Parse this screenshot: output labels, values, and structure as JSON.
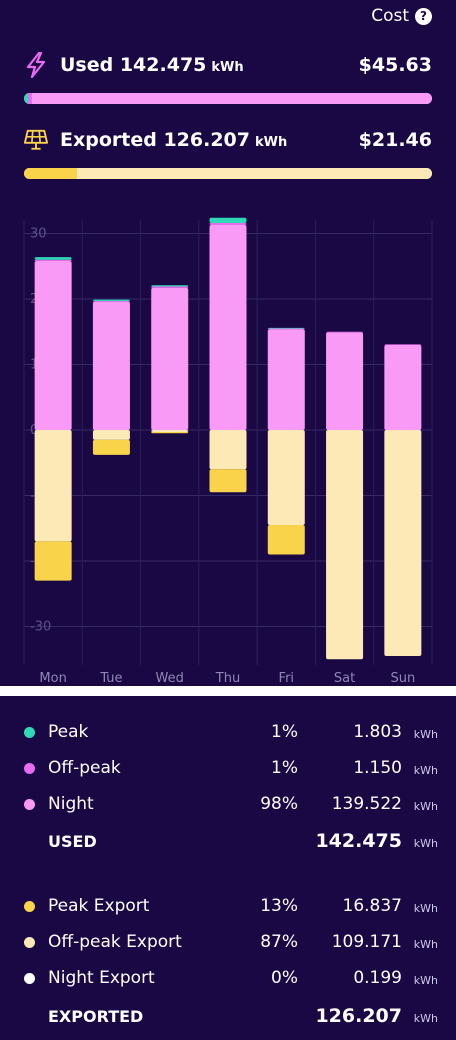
{
  "header": {
    "cost_label": "Cost",
    "help_glyph": "?"
  },
  "used": {
    "label": "Used 142.475",
    "unit": "kWh",
    "cost": "$45.63",
    "icon": "lightning-icon",
    "bar_fill": [
      {
        "name": "Peak",
        "fraction": 0.01,
        "color": "#2ed9b5"
      },
      {
        "name": "Off-peak",
        "fraction": 0.01,
        "color": "#e86cf0"
      },
      {
        "name": "Night",
        "fraction": 0.98,
        "color": "#f99af6"
      }
    ]
  },
  "exported": {
    "label": "Exported 126.207",
    "unit": "kWh",
    "cost": "$21.46",
    "icon": "solar-panel-icon",
    "bar_fill": [
      {
        "name": "Peak Export",
        "fraction": 0.13,
        "color": "#f9d34a"
      },
      {
        "name": "Off-peak Export",
        "fraction": 0.87,
        "color": "#fce9b5"
      }
    ]
  },
  "chart_data": {
    "type": "bar",
    "stacked": true,
    "categories": [
      "Mon",
      "Tue",
      "Wed",
      "Thu",
      "Fri",
      "Sat",
      "Sun"
    ],
    "y_ticks": [
      30,
      20,
      10,
      0,
      -10,
      -20,
      -30
    ],
    "ylim": [
      -35,
      33
    ],
    "grid": true,
    "series": [
      {
        "name": "Night",
        "color": "#f99af6",
        "values": [
          25.8,
          19.6,
          21.7,
          31.3,
          15.4,
          14.9,
          13.0
        ]
      },
      {
        "name": "Off-peak",
        "color": "#e86cf0",
        "values": [
          0.2,
          0.1,
          0.2,
          0.3,
          0.1,
          0.1,
          0.1
        ]
      },
      {
        "name": "Peak",
        "color": "#2ed9b5",
        "values": [
          0.4,
          0.2,
          0.2,
          0.8,
          0.1,
          0.0,
          0.0
        ]
      },
      {
        "name": "Off-peak Export",
        "color": "#fce9b5",
        "values": [
          -17.0,
          -1.5,
          -0.3,
          -6.0,
          -14.5,
          -35.0,
          -34.5
        ]
      },
      {
        "name": "Peak Export",
        "color": "#f9d34a",
        "values": [
          -6.0,
          -2.3,
          -0.2,
          -3.5,
          -4.5,
          0.0,
          0.0
        ]
      }
    ]
  },
  "legend": {
    "used_items": [
      {
        "name": "Peak",
        "pct": "1%",
        "value": "1.803",
        "unit": "kWh",
        "color": "#2ed9b5"
      },
      {
        "name": "Off-peak",
        "pct": "1%",
        "value": "1.150",
        "unit": "kWh",
        "color": "#e86cf0"
      },
      {
        "name": "Night",
        "pct": "98%",
        "value": "139.522",
        "unit": "kWh",
        "color": "#f99af6"
      }
    ],
    "used_total": {
      "label": "USED",
      "value": "142.475",
      "unit": "kWh"
    },
    "export_items": [
      {
        "name": "Peak Export",
        "pct": "13%",
        "value": "16.837",
        "unit": "kWh",
        "color": "#f9d34a"
      },
      {
        "name": "Off-peak Export",
        "pct": "87%",
        "value": "109.171",
        "unit": "kWh",
        "color": "#fce9b5"
      },
      {
        "name": "Night Export",
        "pct": "0%",
        "value": "0.199",
        "unit": "kWh",
        "color": "#ffffff"
      }
    ],
    "export_total": {
      "label": "EXPORTED",
      "value": "126.207",
      "unit": "kWh"
    }
  }
}
